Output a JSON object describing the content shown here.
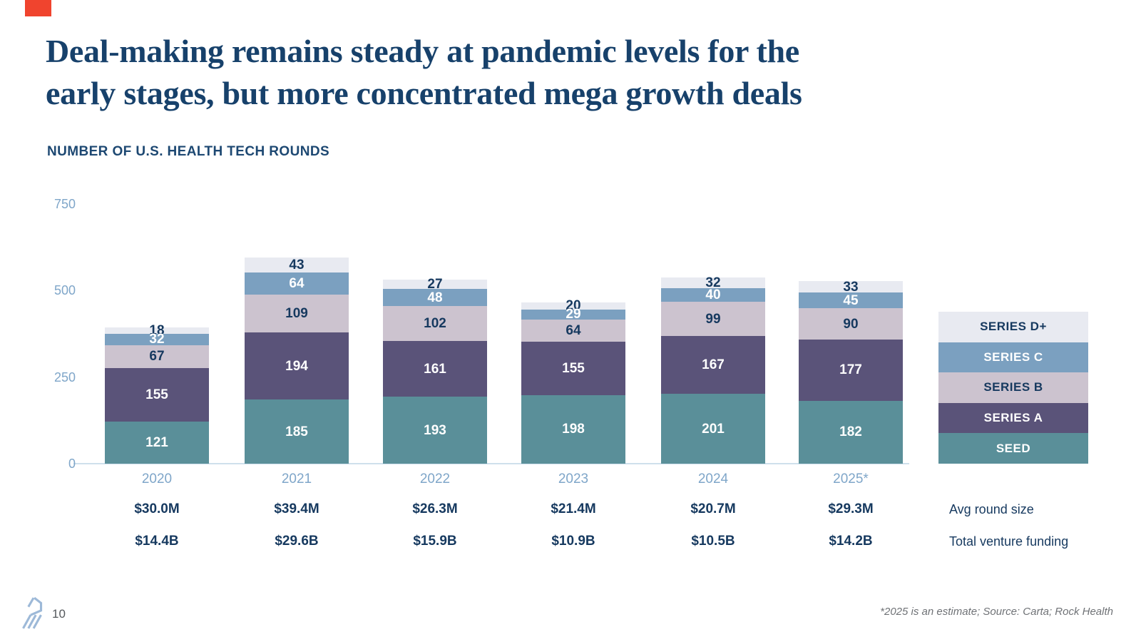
{
  "slide": {
    "title_line1": "Deal-making remains steady at pandemic levels for the",
    "title_line2": "early stages, but more concentrated mega growth deals",
    "subtitle": "NUMBER OF U.S. HEALTH TECH ROUNDS",
    "page_number": "10",
    "footnote": "*2025 is an estimate; Source: Carta; Rock Health",
    "brand_accent_color": "#F0442E",
    "logo_color": "#9DB9D8"
  },
  "chart_data": {
    "type": "bar",
    "stacked": true,
    "title": "NUMBER OF U.S. HEALTH TECH ROUNDS",
    "categories": [
      "2020",
      "2021",
      "2022",
      "2023",
      "2024",
      "2025*"
    ],
    "series": [
      {
        "name": "SEED",
        "color": "#5A8F99",
        "label_color": "#FFFFFF",
        "values": [
          121,
          185,
          193,
          198,
          201,
          182
        ]
      },
      {
        "name": "SERIES A",
        "color": "#5A5379",
        "label_color": "#FFFFFF",
        "values": [
          155,
          194,
          161,
          155,
          167,
          177
        ]
      },
      {
        "name": "SERIES B",
        "color": "#CCC3CF",
        "label_color": "#16395F",
        "values": [
          67,
          109,
          102,
          64,
          99,
          90
        ]
      },
      {
        "name": "SERIES C",
        "color": "#7BA0C0",
        "label_color": "#FFFFFF",
        "values": [
          32,
          64,
          48,
          29,
          40,
          45
        ]
      },
      {
        "name": "SERIES D+",
        "color": "#E8EAF1",
        "label_color": "#16395F",
        "values": [
          18,
          43,
          27,
          20,
          32,
          33
        ]
      }
    ],
    "legend_order_top_to_bottom": [
      "SERIES D+",
      "SERIES C",
      "SERIES B",
      "SERIES A",
      "SEED"
    ],
    "legend_position": "right",
    "y_ticks": [
      0,
      250,
      500,
      750
    ],
    "ylim": [
      0,
      750
    ],
    "grid": false,
    "xlabel": "",
    "ylabel": "",
    "avg_round_size": {
      "label": "Avg round size",
      "values": [
        "$30.0M",
        "$39.4M",
        "$26.3M",
        "$21.4M",
        "$20.7M",
        "$29.3M"
      ]
    },
    "total_venture_funding": {
      "label": "Total venture funding",
      "values": [
        "$14.4B",
        "$29.6B",
        "$15.9B",
        "$10.9B",
        "$10.5B",
        "$14.2B"
      ]
    },
    "axis_text_color": "#7FA6C9",
    "value_text_navy": "#16395F"
  }
}
